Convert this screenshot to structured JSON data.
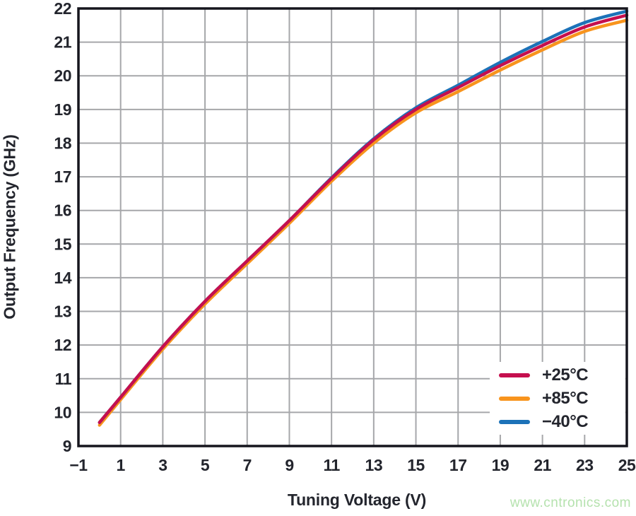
{
  "watermark": {
    "text": "www.cntronics.com",
    "color": "#b5e2ae"
  },
  "frame_color": "#15151d",
  "grid_color": "#a6a7aa",
  "text_color": "#23252d",
  "chart_data": {
    "type": "line",
    "title": "",
    "xlabel": "Tuning Voltage (V)",
    "ylabel": "Output Frequency (GHz)",
    "xlim": [
      -1,
      25
    ],
    "ylim": [
      9,
      22
    ],
    "x_ticks": [
      -1,
      1,
      3,
      5,
      7,
      9,
      11,
      13,
      15,
      17,
      19,
      21,
      23,
      25
    ],
    "y_ticks": [
      9,
      10,
      11,
      12,
      13,
      14,
      15,
      16,
      17,
      18,
      19,
      20,
      21,
      22
    ],
    "grid": true,
    "legend_position": "inside-bottom-right",
    "x": [
      0,
      1,
      3,
      5,
      7,
      9,
      11,
      13,
      15,
      17,
      19,
      21,
      23,
      25
    ],
    "series": [
      {
        "name": "+25°C",
        "color": "#c50f4e",
        "values": [
          9.7,
          10.45,
          11.95,
          13.3,
          14.5,
          15.7,
          16.95,
          18.1,
          19.0,
          19.65,
          20.3,
          20.9,
          21.45,
          21.8
        ]
      },
      {
        "name": "+85°C",
        "color": "#f8941d",
        "values": [
          9.62,
          10.38,
          11.88,
          13.22,
          14.42,
          15.62,
          16.87,
          18.0,
          18.9,
          19.53,
          20.17,
          20.77,
          21.32,
          21.65
        ]
      },
      {
        "name": "−40°C",
        "color": "#1c72b8",
        "values": [
          9.7,
          10.45,
          11.95,
          13.3,
          14.5,
          15.7,
          16.97,
          18.13,
          19.05,
          19.72,
          20.4,
          21.02,
          21.58,
          21.92
        ]
      }
    ]
  }
}
